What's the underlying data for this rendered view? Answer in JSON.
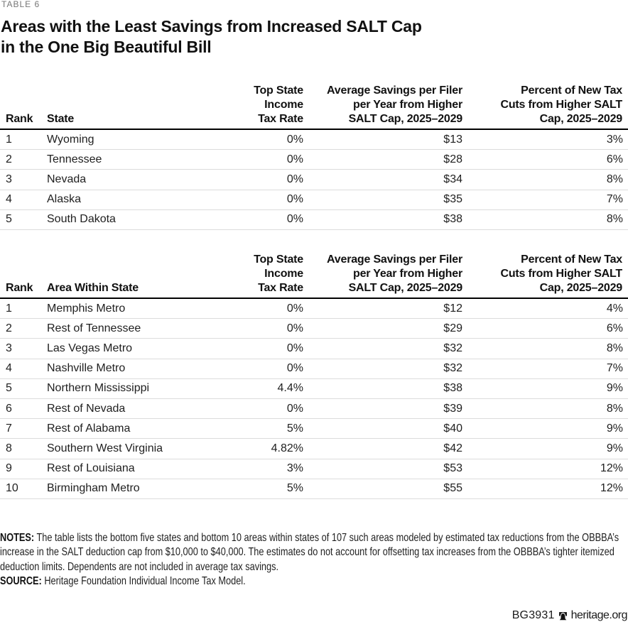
{
  "eyebrow": "TABLE 6",
  "title": {
    "line1": "Areas with the Least Savings from Increased SALT Cap",
    "line2": "in the One Big Beautiful Bill"
  },
  "chart_data": [
    {
      "type": "table",
      "columns": [
        {
          "label": "Rank",
          "align": "left"
        },
        {
          "label": "State",
          "align": "left"
        },
        {
          "label": "Top State\nIncome\nTax Rate",
          "align": "right"
        },
        {
          "label": "Average Savings per Filer\nper Year from Higher\nSALT Cap, 2025–2029",
          "align": "right"
        },
        {
          "label": "Percent of New Tax\nCuts from Higher SALT\nCap, 2025–2029",
          "align": "right"
        }
      ],
      "rows": [
        [
          "1",
          "Wyoming",
          "0%",
          "$13",
          "3%"
        ],
        [
          "2",
          "Tennessee",
          "0%",
          "$28",
          "6%"
        ],
        [
          "3",
          "Nevada",
          "0%",
          "$34",
          "8%"
        ],
        [
          "4",
          "Alaska",
          "0%",
          "$35",
          "7%"
        ],
        [
          "5",
          "South Dakota",
          "0%",
          "$38",
          "8%"
        ]
      ]
    },
    {
      "type": "table",
      "columns": [
        {
          "label": "Rank",
          "align": "left"
        },
        {
          "label": "Area Within State",
          "align": "left"
        },
        {
          "label": "Top State\nIncome\nTax Rate",
          "align": "right"
        },
        {
          "label": "Average Savings per Filer\nper Year from Higher\nSALT Cap, 2025–2029",
          "align": "right"
        },
        {
          "label": "Percent of New Tax\nCuts from Higher SALT\nCap, 2025–2029",
          "align": "right"
        }
      ],
      "rows": [
        [
          "1",
          "Memphis Metro",
          "0%",
          "$12",
          "4%"
        ],
        [
          "2",
          "Rest of Tennessee",
          "0%",
          "$29",
          "6%"
        ],
        [
          "3",
          "Las Vegas Metro",
          "0%",
          "$32",
          "8%"
        ],
        [
          "4",
          "Nashville Metro",
          "0%",
          "$32",
          "7%"
        ],
        [
          "5",
          "Northern Mississippi",
          "4.4%",
          "$38",
          "9%"
        ],
        [
          "6",
          "Rest of Nevada",
          "0%",
          "$39",
          "8%"
        ],
        [
          "7",
          "Rest of Alabama",
          "5%",
          "$40",
          "9%"
        ],
        [
          "8",
          "Southern West Virginia",
          "4.82%",
          "$42",
          "9%"
        ],
        [
          "9",
          "Rest of Louisiana",
          "3%",
          "$53",
          "12%"
        ],
        [
          "10",
          "Birmingham Metro",
          "5%",
          "$55",
          "12%"
        ]
      ]
    }
  ],
  "notes": {
    "label": "NOTES:",
    "lines": [
      "The table lists the bottom five states and bottom 10 areas within states of 107 such areas modeled by estimated tax reductions from the OBBBA’s",
      "increase in the SALT deduction cap from $10,000 to $40,000. The estimates do not account for offsetting tax increases from the OBBBA’s tighter itemized",
      "deduction limits. Dependents are not included in average tax savings."
    ]
  },
  "source": {
    "label": "SOURCE:",
    "text": "Heritage Foundation Individual Income Tax Model."
  },
  "footer": {
    "report_id": "BG3931",
    "site": "heritage.org",
    "logo": "liberty-bell-icon"
  }
}
